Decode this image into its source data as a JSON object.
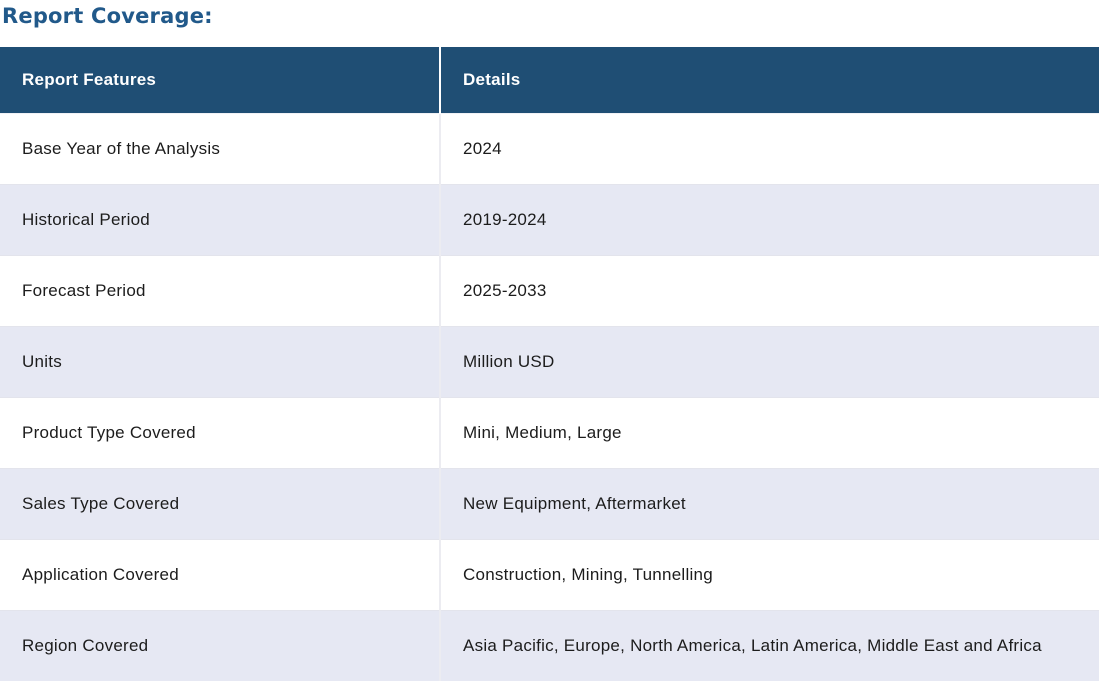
{
  "section": {
    "title": "Report Coverage:"
  },
  "table": {
    "headers": [
      "Report Features",
      "Details"
    ],
    "rows": [
      {
        "feature": "Base Year of the Analysis",
        "detail": "2024"
      },
      {
        "feature": "Historical Period",
        "detail": "2019-2024"
      },
      {
        "feature": "Forecast Period",
        "detail": "2025-2033"
      },
      {
        "feature": "Units",
        "detail": "Million USD"
      },
      {
        "feature": "Product Type Covered",
        "detail": "Mini, Medium, Large"
      },
      {
        "feature": "Sales Type Covered",
        "detail": "New Equipment, Aftermarket"
      },
      {
        "feature": "Application Covered",
        "detail": "Construction, Mining, Tunnelling"
      },
      {
        "feature": "Region Covered",
        "detail": "Asia Pacific, Europe, North America, Latin America, Middle East and Africa"
      }
    ]
  },
  "colors": {
    "header_background": "#1F4E74",
    "header_text": "#FFFFFF",
    "title_text": "#21598A",
    "alt_row_background": "#E6E8F3",
    "row_background": "#FFFFFF",
    "body_text": "#1C1C1C",
    "row_divider": "#E3E4EC"
  }
}
